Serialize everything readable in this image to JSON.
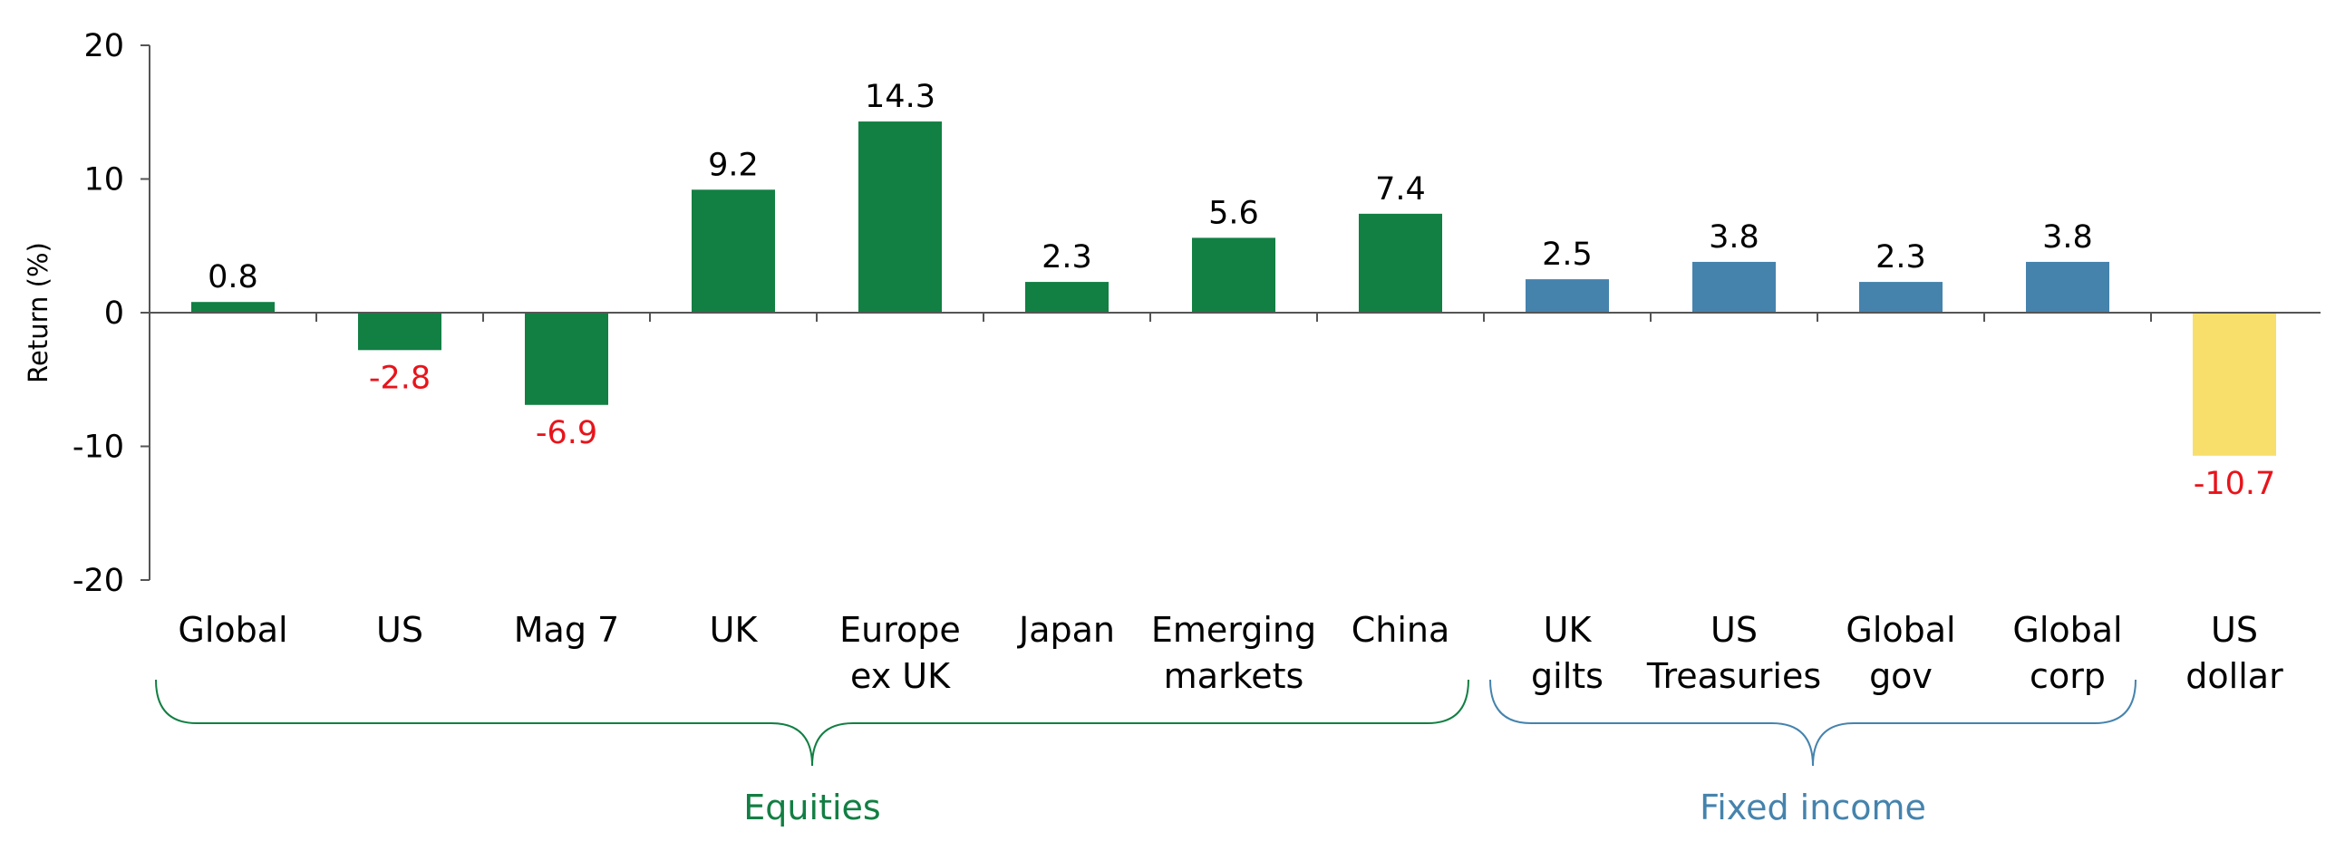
{
  "chart_data": {
    "type": "bar",
    "ylabel": "Return (%)",
    "ylim": [
      -20,
      20
    ],
    "yticks": [
      "20",
      "10",
      "0",
      "-10",
      "-20"
    ],
    "categories": [
      [
        "Global"
      ],
      [
        "US"
      ],
      [
        "Mag 7"
      ],
      [
        "UK"
      ],
      [
        "Europe",
        "ex UK"
      ],
      [
        "Japan"
      ],
      [
        "Emerging",
        "markets"
      ],
      [
        "China"
      ],
      [
        "UK",
        "gilts"
      ],
      [
        "US",
        "Treasuries"
      ],
      [
        "Global",
        "gov"
      ],
      [
        "Global",
        "corp"
      ],
      [
        "US",
        "dollar"
      ]
    ],
    "values": [
      0.8,
      -2.8,
      -6.9,
      9.2,
      14.3,
      2.3,
      5.6,
      7.4,
      2.5,
      3.8,
      2.3,
      3.8,
      -10.7
    ],
    "value_labels": [
      "0.8",
      "-2.8",
      "-6.9",
      "9.2",
      "14.3",
      "2.3",
      "5.6",
      "7.4",
      "2.5",
      "3.8",
      "2.3",
      "3.8",
      "-10.7"
    ],
    "bar_groups": [
      "equities",
      "equities",
      "equities",
      "equities",
      "equities",
      "equities",
      "equities",
      "equities",
      "fixed",
      "fixed",
      "fixed",
      "fixed",
      "currency"
    ],
    "groups": [
      {
        "key": "equities",
        "label": "Equities",
        "from": 0,
        "to": 7
      },
      {
        "key": "fixed",
        "label": "Fixed income",
        "from": 8,
        "to": 11
      }
    ],
    "grid": false,
    "legend": "none"
  },
  "colors": {
    "equities": "#127f43",
    "fixed": "#4583ad",
    "currency": "#f8df6b",
    "negative_label": "#e8141b",
    "positive_label": "#000000",
    "axis": "#555555",
    "equities_label": "#127f43",
    "fixed_label": "#4583ad"
  }
}
